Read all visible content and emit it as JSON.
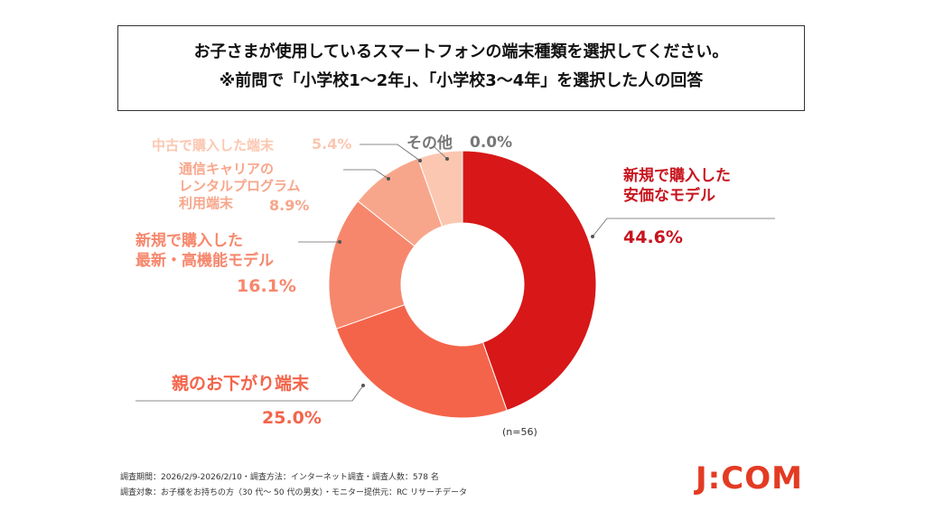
{
  "chart_data": {
    "type": "donut",
    "title": "お子さまが使用しているスマートフォンの端末種類を選択してください。",
    "subtitle": "※前問で「小学校1～2年」、「小学校3～4年」を選択した人の回答",
    "categories": [
      "新規で購入した\n安価なモデル",
      "親のお下がり端末",
      "新規で購入した\n最新・高機能モデル",
      "通信キャリアの\nレンタルプログラム\n利用端末",
      "中古で購入した端末",
      "その他"
    ],
    "values": [
      44.6,
      25.0,
      16.1,
      8.9,
      5.4,
      0.0
    ],
    "value_labels": [
      "44.6%",
      "25.0%",
      "16.1%",
      "8.9%",
      "5.4%",
      "0.0%"
    ],
    "colors": [
      "#d71718",
      "#f4644a",
      "#f6876c",
      "#f8a68b",
      "#fbc7b1",
      "#fbe0d4"
    ],
    "note": "(n=56)"
  },
  "footer": {
    "lines": [
      "調査期間：2026/2/9-2026/2/10・調査方法：インターネット調査・調査人数：578 名",
      "調査対象：お子様をお持ちの方（30 代～ 50 代の男女）・モニター提供元：RC リサーチデータ"
    ],
    "logo": "J:COM"
  }
}
